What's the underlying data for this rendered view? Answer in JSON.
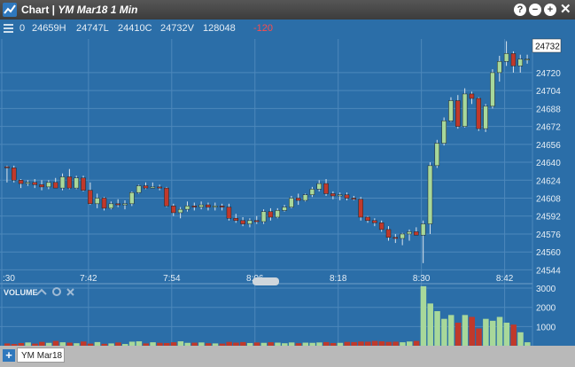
{
  "window": {
    "title": "Chart |",
    "subtitle": "YM Mar18 1 Min",
    "help": "?",
    "minimize": "−",
    "maximize": "+",
    "close": "✕"
  },
  "ohlc_bar": {
    "open": "0",
    "high": "24659H",
    "low": "24747L",
    "close": "24410C",
    "last": "24732V",
    "volume": "128048",
    "change": "-120"
  },
  "volume_panel": {
    "label": "VOLUME"
  },
  "footer": {
    "add": "+",
    "tab_label": "YM Mar18"
  },
  "colors": {
    "background": "#2b6ea8",
    "grid": "#4d88bb",
    "up": "#a8d89a",
    "down": "#c0392b",
    "change_text": "#ff4b4b"
  },
  "chart_data": {
    "type": "candlestick",
    "x_tick_labels": [
      ":30",
      "7:42",
      "7:54",
      "8:06",
      "8:18",
      "8:30",
      "8:42"
    ],
    "y_tick_labels": [
      "24720",
      "24704",
      "24688",
      "24672",
      "24656",
      "24640",
      "24624",
      "24608",
      "24592",
      "24576",
      "24560",
      "24544"
    ],
    "ylim": [
      24538,
      24750
    ],
    "last_price_label": "24732",
    "volume_tick_labels": [
      "3000",
      "2000",
      "1000"
    ],
    "volume_ylim": [
      0,
      3140
    ],
    "candles": [
      {
        "o": 24636,
        "h": 24637,
        "l": 24622,
        "c": 24635
      },
      {
        "o": 24635,
        "h": 24637,
        "l": 24622,
        "c": 24624
      },
      {
        "o": 24624,
        "h": 24625,
        "l": 24617,
        "c": 24621
      },
      {
        "o": 24621,
        "h": 24624,
        "l": 24619,
        "c": 24622
      },
      {
        "o": 24622,
        "h": 24625,
        "l": 24617,
        "c": 24620
      },
      {
        "o": 24620,
        "h": 24624,
        "l": 24615,
        "c": 24618
      },
      {
        "o": 24618,
        "h": 24624,
        "l": 24616,
        "c": 24622
      },
      {
        "o": 24622,
        "h": 24626,
        "l": 24618,
        "c": 24617
      },
      {
        "o": 24617,
        "h": 24630,
        "l": 24615,
        "c": 24627
      },
      {
        "o": 24627,
        "h": 24634,
        "l": 24616,
        "c": 24617
      },
      {
        "o": 24617,
        "h": 24628,
        "l": 24616,
        "c": 24626
      },
      {
        "o": 24626,
        "h": 24628,
        "l": 24614,
        "c": 24615
      },
      {
        "o": 24615,
        "h": 24622,
        "l": 24602,
        "c": 24603
      },
      {
        "o": 24603,
        "h": 24612,
        "l": 24599,
        "c": 24608
      },
      {
        "o": 24608,
        "h": 24609,
        "l": 24597,
        "c": 24599
      },
      {
        "o": 24599,
        "h": 24605,
        "l": 24598,
        "c": 24603
      },
      {
        "o": 24603,
        "h": 24607,
        "l": 24600,
        "c": 24602
      },
      {
        "o": 24602,
        "h": 24606,
        "l": 24598,
        "c": 24603
      },
      {
        "o": 24603,
        "h": 24614,
        "l": 24601,
        "c": 24613
      },
      {
        "o": 24613,
        "h": 24620,
        "l": 24612,
        "c": 24619
      },
      {
        "o": 24619,
        "h": 24622,
        "l": 24616,
        "c": 24617
      },
      {
        "o": 24617,
        "h": 24622,
        "l": 24617,
        "c": 24618
      },
      {
        "o": 24618,
        "h": 24620,
        "l": 24615,
        "c": 24617
      },
      {
        "o": 24617,
        "h": 24618,
        "l": 24600,
        "c": 24601
      },
      {
        "o": 24601,
        "h": 24603,
        "l": 24592,
        "c": 24595
      },
      {
        "o": 24595,
        "h": 24600,
        "l": 24590,
        "c": 24598
      },
      {
        "o": 24598,
        "h": 24605,
        "l": 24596,
        "c": 24601
      },
      {
        "o": 24601,
        "h": 24604,
        "l": 24597,
        "c": 24600
      },
      {
        "o": 24600,
        "h": 24605,
        "l": 24598,
        "c": 24602
      },
      {
        "o": 24602,
        "h": 24604,
        "l": 24597,
        "c": 24600
      },
      {
        "o": 24600,
        "h": 24604,
        "l": 24597,
        "c": 24601
      },
      {
        "o": 24601,
        "h": 24603,
        "l": 24597,
        "c": 24600
      },
      {
        "o": 24600,
        "h": 24603,
        "l": 24588,
        "c": 24590
      },
      {
        "o": 24590,
        "h": 24594,
        "l": 24586,
        "c": 24588
      },
      {
        "o": 24588,
        "h": 24591,
        "l": 24583,
        "c": 24585
      },
      {
        "o": 24585,
        "h": 24590,
        "l": 24582,
        "c": 24588
      },
      {
        "o": 24588,
        "h": 24592,
        "l": 24585,
        "c": 24587
      },
      {
        "o": 24587,
        "h": 24598,
        "l": 24585,
        "c": 24596
      },
      {
        "o": 24596,
        "h": 24599,
        "l": 24588,
        "c": 24591
      },
      {
        "o": 24591,
        "h": 24599,
        "l": 24590,
        "c": 24597
      },
      {
        "o": 24597,
        "h": 24602,
        "l": 24596,
        "c": 24600
      },
      {
        "o": 24600,
        "h": 24610,
        "l": 24599,
        "c": 24608
      },
      {
        "o": 24608,
        "h": 24612,
        "l": 24602,
        "c": 24606
      },
      {
        "o": 24606,
        "h": 24612,
        "l": 24605,
        "c": 24611
      },
      {
        "o": 24611,
        "h": 24618,
        "l": 24609,
        "c": 24616
      },
      {
        "o": 24616,
        "h": 24624,
        "l": 24614,
        "c": 24621
      },
      {
        "o": 24621,
        "h": 24625,
        "l": 24610,
        "c": 24612
      },
      {
        "o": 24612,
        "h": 24614,
        "l": 24607,
        "c": 24610
      },
      {
        "o": 24610,
        "h": 24613,
        "l": 24606,
        "c": 24611
      },
      {
        "o": 24611,
        "h": 24613,
        "l": 24606,
        "c": 24608
      },
      {
        "o": 24608,
        "h": 24610,
        "l": 24606,
        "c": 24607
      },
      {
        "o": 24607,
        "h": 24609,
        "l": 24588,
        "c": 24591
      },
      {
        "o": 24591,
        "h": 24592,
        "l": 24586,
        "c": 24588
      },
      {
        "o": 24588,
        "h": 24590,
        "l": 24583,
        "c": 24586
      },
      {
        "o": 24586,
        "h": 24588,
        "l": 24578,
        "c": 24580
      },
      {
        "o": 24580,
        "h": 24583,
        "l": 24570,
        "c": 24573
      },
      {
        "o": 24573,
        "h": 24576,
        "l": 24568,
        "c": 24572
      },
      {
        "o": 24572,
        "h": 24577,
        "l": 24566,
        "c": 24576
      },
      {
        "o": 24576,
        "h": 24580,
        "l": 24570,
        "c": 24578
      },
      {
        "o": 24578,
        "h": 24582,
        "l": 24575,
        "c": 24575
      },
      {
        "o": 24575,
        "h": 24588,
        "l": 24550,
        "c": 24585
      },
      {
        "o": 24585,
        "h": 24640,
        "l": 24576,
        "c": 24637
      },
      {
        "o": 24637,
        "h": 24660,
        "l": 24635,
        "c": 24657
      },
      {
        "o": 24657,
        "h": 24680,
        "l": 24655,
        "c": 24677
      },
      {
        "o": 24677,
        "h": 24698,
        "l": 24676,
        "c": 24695
      },
      {
        "o": 24695,
        "h": 24700,
        "l": 24670,
        "c": 24672
      },
      {
        "o": 24672,
        "h": 24706,
        "l": 24671,
        "c": 24701
      },
      {
        "o": 24701,
        "h": 24703,
        "l": 24692,
        "c": 24697
      },
      {
        "o": 24697,
        "h": 24698,
        "l": 24668,
        "c": 24670
      },
      {
        "o": 24670,
        "h": 24692,
        "l": 24667,
        "c": 24690
      },
      {
        "o": 24690,
        "h": 24723,
        "l": 24688,
        "c": 24720
      },
      {
        "o": 24720,
        "h": 24735,
        "l": 24712,
        "c": 24730
      },
      {
        "o": 24730,
        "h": 24748,
        "l": 24726,
        "c": 24737
      },
      {
        "o": 24737,
        "h": 24739,
        "l": 24720,
        "c": 24726
      },
      {
        "o": 24726,
        "h": 24736,
        "l": 24720,
        "c": 24732
      },
      {
        "o": 24732,
        "h": 24736,
        "l": 24728,
        "c": 24732
      }
    ],
    "volumes": [
      120,
      90,
      140,
      170,
      110,
      200,
      150,
      250,
      180,
      160,
      130,
      220,
      110,
      190,
      100,
      120,
      170,
      90,
      210,
      230,
      120,
      180,
      150,
      140,
      180,
      230,
      150,
      160,
      170,
      130,
      120,
      110,
      200,
      160,
      190,
      140,
      170,
      150,
      180,
      160,
      130,
      170,
      130,
      160,
      150,
      170,
      190,
      140,
      150,
      200,
      190,
      220,
      210,
      250,
      230,
      200,
      210,
      180,
      220,
      250,
      3100,
      2200,
      1800,
      1400,
      1600,
      1200,
      1600,
      1500,
      900,
      1400,
      1300,
      1500,
      1200,
      1100,
      700,
      180
    ]
  }
}
